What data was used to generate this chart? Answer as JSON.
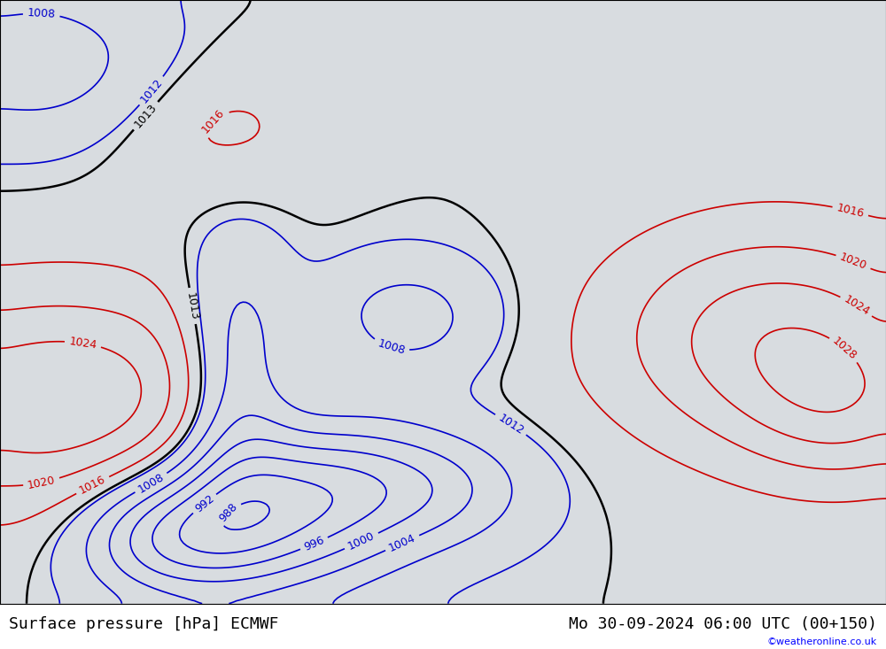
{
  "title_left": "Surface pressure [hPa] ECMWF",
  "title_right": "Mo 30-09-2024 06:00 UTC (00+150)",
  "watermark": "©weatheronline.co.uk",
  "background_color": "#d8dce0",
  "land_color": "#b5e8a0",
  "border_color": "#888888",
  "text_color_black": "#000000",
  "text_color_blue": "#0000cc",
  "text_color_red": "#cc0000",
  "contour_low_color": "#0000cc",
  "contour_mid_color": "#000000",
  "contour_high_color": "#cc0000",
  "contour_levels": [
    988,
    992,
    996,
    1000,
    1004,
    1008,
    1012,
    1013,
    1016,
    1020,
    1024,
    1028
  ],
  "lon_min": -100,
  "lon_max": 20,
  "lat_min": -70,
  "lat_max": 25,
  "font_size_title": 13,
  "font_size_label": 9
}
